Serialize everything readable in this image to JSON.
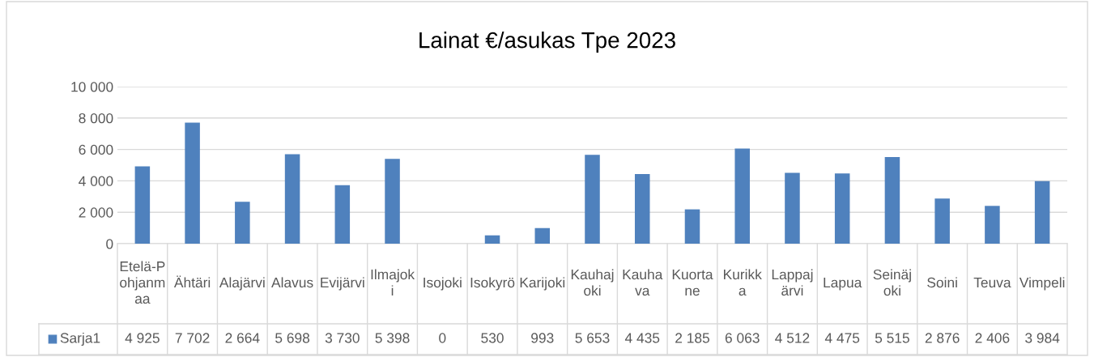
{
  "chart_data": {
    "type": "bar",
    "title": "Lainat €/asukas Tpe 2023",
    "categories": [
      "Etelä-Pohjanmaa",
      "Ähtäri",
      "Alajärvi",
      "Alavus",
      "Evijärvi",
      "Ilmajoki",
      "Isojoki",
      "Isokyrö",
      "Karijoki",
      "Kauhajoki",
      "Kauhava",
      "Kuortane",
      "Kurikka",
      "Lappajärvi",
      "Lapua",
      "Seinäjoki",
      "Soini",
      "Teuva",
      "Vimpeli"
    ],
    "series": [
      {
        "name": "Sarja1",
        "color": "#4f81bd",
        "values": [
          4925,
          7702,
          2664,
          5698,
          3730,
          5398,
          0,
          530,
          993,
          5653,
          4435,
          2185,
          6063,
          4512,
          4475,
          5515,
          2876,
          2406,
          3984
        ],
        "value_labels": [
          "4 925",
          "7 702",
          "2 664",
          "5 698",
          "3 730",
          "5 398",
          "0",
          "530",
          "993",
          "5 653",
          "4 435",
          "2 185",
          "6 063",
          "4 512",
          "4 475",
          "5 515",
          "2 876",
          "2 406",
          "3 984"
        ]
      }
    ],
    "ylim": [
      0,
      10000
    ],
    "yticks": [
      {
        "value": 0,
        "label": "0"
      },
      {
        "value": 2000,
        "label": "2 000"
      },
      {
        "value": 4000,
        "label": "4 000"
      },
      {
        "value": 6000,
        "label": "6 000"
      },
      {
        "value": 8000,
        "label": "8 000"
      },
      {
        "value": 10000,
        "label": "10 000"
      }
    ],
    "grid": "y",
    "legend": "bottom"
  }
}
